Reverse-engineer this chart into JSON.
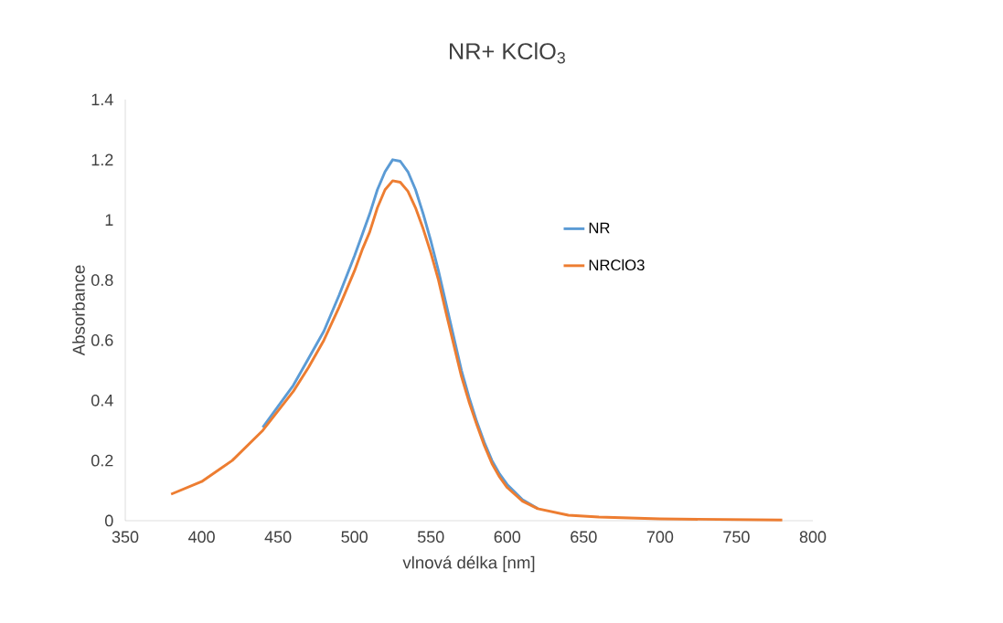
{
  "chart_data": {
    "type": "line",
    "title": "NR+ KClO$_{3}$",
    "xlabel": "vlnová délka [nm]",
    "ylabel": "Absorbance",
    "xlim": [
      350,
      800
    ],
    "xticks": [
      350,
      400,
      450,
      500,
      550,
      600,
      650,
      700,
      750,
      800
    ],
    "ylim": [
      0,
      1.4
    ],
    "yticks": [
      0,
      0.2,
      0.4,
      0.6,
      0.8,
      1,
      1.2,
      1.4
    ],
    "grid": false,
    "legend": "right",
    "marker": "none",
    "line_style": "solid",
    "x": [
      380,
      400,
      420,
      440,
      460,
      470,
      480,
      490,
      500,
      505,
      510,
      515,
      520,
      525,
      530,
      535,
      540,
      545,
      550,
      555,
      560,
      565,
      570,
      575,
      580,
      585,
      590,
      595,
      600,
      610,
      620,
      640,
      660,
      700,
      740,
      780
    ],
    "series": [
      {
        "name": "NR",
        "color": "#5b9bd5",
        "values": [
          null,
          null,
          null,
          0.31,
          0.45,
          0.54,
          0.63,
          0.75,
          0.88,
          0.95,
          1.02,
          1.1,
          1.16,
          1.2,
          1.195,
          1.16,
          1.1,
          1.02,
          0.93,
          0.83,
          0.72,
          0.61,
          0.5,
          0.41,
          0.33,
          0.26,
          0.2,
          0.155,
          0.12,
          0.07,
          0.04,
          null,
          null,
          null,
          null,
          null
        ]
      },
      {
        "name": "NRClO3",
        "color": "#ed7d31",
        "values": [
          0.088,
          0.13,
          0.2,
          0.3,
          0.43,
          0.51,
          0.6,
          0.71,
          0.83,
          0.9,
          0.96,
          1.04,
          1.1,
          1.13,
          1.125,
          1.095,
          1.04,
          0.97,
          0.89,
          0.8,
          0.69,
          0.585,
          0.48,
          0.395,
          0.32,
          0.25,
          0.19,
          0.145,
          0.11,
          0.065,
          0.04,
          0.018,
          0.012,
          0.006,
          0.004,
          0.002
        ]
      }
    ]
  }
}
